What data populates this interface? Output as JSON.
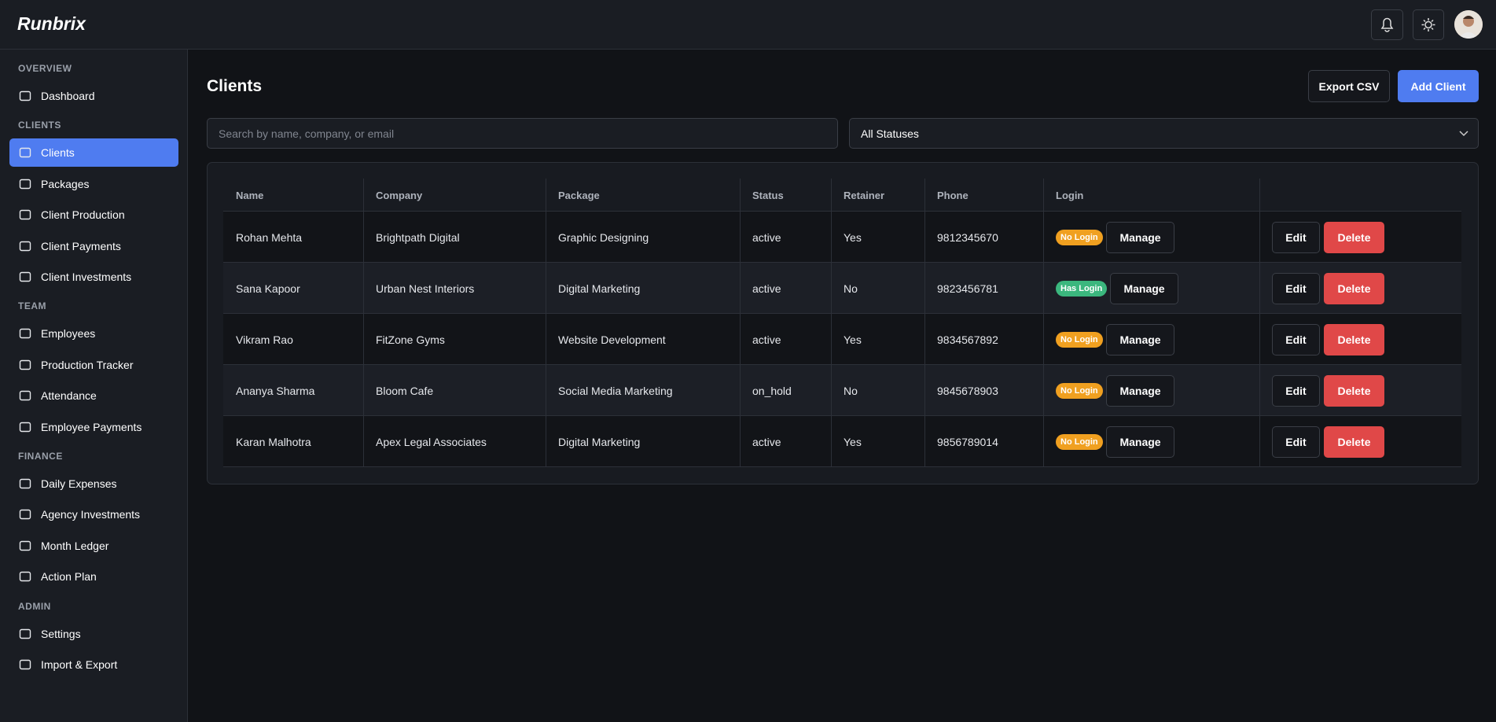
{
  "header": {
    "logo": "Runbrix"
  },
  "sidebar": {
    "sections": [
      {
        "title": "OVERVIEW",
        "items": [
          {
            "label": "Dashboard"
          }
        ]
      },
      {
        "title": "CLIENTS",
        "items": [
          {
            "label": "Clients",
            "active": true
          },
          {
            "label": "Packages"
          },
          {
            "label": "Client Production"
          },
          {
            "label": "Client Payments"
          },
          {
            "label": "Client Investments"
          }
        ]
      },
      {
        "title": "TEAM",
        "items": [
          {
            "label": "Employees"
          },
          {
            "label": "Production Tracker"
          },
          {
            "label": "Attendance"
          },
          {
            "label": "Employee Payments"
          }
        ]
      },
      {
        "title": "FINANCE",
        "items": [
          {
            "label": "Daily Expenses"
          },
          {
            "label": "Agency Investments"
          },
          {
            "label": "Month Ledger"
          },
          {
            "label": "Action Plan"
          }
        ]
      },
      {
        "title": "ADMIN",
        "items": [
          {
            "label": "Settings"
          },
          {
            "label": "Import & Export"
          }
        ]
      }
    ]
  },
  "page": {
    "title": "Clients",
    "export_button": "Export CSV",
    "add_button": "Add Client",
    "search_placeholder": "Search by name, company, or email",
    "status_filter": "All Statuses"
  },
  "table": {
    "columns": [
      "Name",
      "Company",
      "Package",
      "Status",
      "Retainer",
      "Phone",
      "Login"
    ],
    "actions": {
      "manage": "Manage",
      "edit": "Edit",
      "delete": "Delete"
    },
    "rows": [
      {
        "cells": [
          "Rohan Mehta",
          "Brightpath Digital",
          "Graphic Designing",
          "active",
          "Yes",
          "9812345670"
        ],
        "login": {
          "label": "No Login",
          "color": "#f0a020"
        }
      },
      {
        "cells": [
          "Sana Kapoor",
          "Urban Nest Interiors",
          "Digital Marketing",
          "active",
          "No",
          "9823456781"
        ],
        "login": {
          "label": "Has Login",
          "color": "#3bb77e"
        }
      },
      {
        "cells": [
          "Vikram Rao",
          "FitZone Gyms",
          "Website Development",
          "active",
          "Yes",
          "9834567892"
        ],
        "login": {
          "label": "No Login",
          "color": "#f0a020"
        }
      },
      {
        "cells": [
          "Ananya Sharma",
          "Bloom Cafe",
          "Social Media Marketing",
          "on_hold",
          "No",
          "9845678903"
        ],
        "login": {
          "label": "No Login",
          "color": "#f0a020"
        }
      },
      {
        "cells": [
          "Karan Malhotra",
          "Apex Legal Associates",
          "Digital Marketing",
          "active",
          "Yes",
          "9856789014"
        ],
        "login": {
          "label": "No Login",
          "color": "#f0a020"
        }
      }
    ]
  }
}
